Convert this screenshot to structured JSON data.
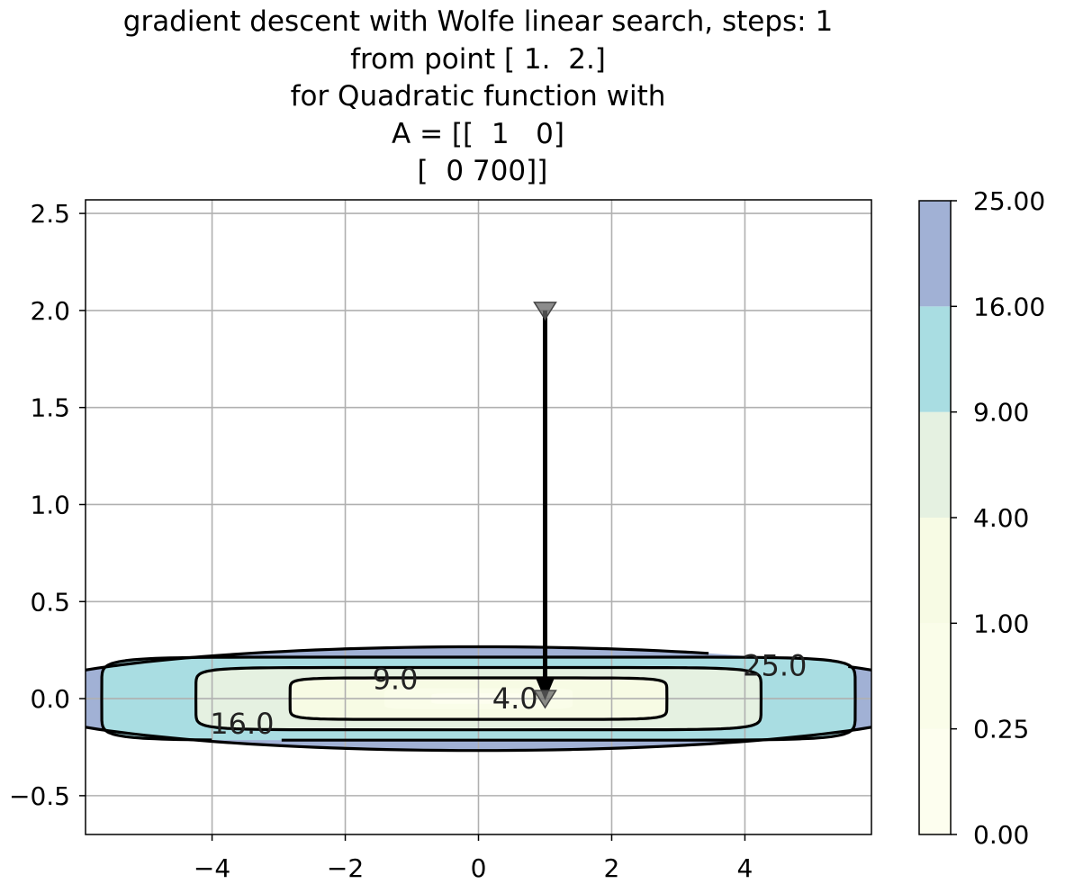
{
  "chart_data": {
    "type": "contour",
    "title_lines": [
      "gradient descent with Wolfe linear search, steps: 1",
      "from point [ 1.  2.]",
      "for Quadratic function with",
      "A = [[  1   0]",
      " [  0 700]]"
    ],
    "xlabel": "",
    "ylabel": "",
    "xlim": [
      -5.9,
      5.9
    ],
    "ylim": [
      -0.7,
      2.57
    ],
    "xticks": [
      -4,
      -2,
      0,
      2,
      4
    ],
    "xtick_labels": [
      "−4",
      "−2",
      "0",
      "2",
      "4"
    ],
    "yticks": [
      -0.5,
      0.0,
      0.5,
      1.0,
      1.5,
      2.0,
      2.5
    ],
    "ytick_labels": [
      "−0.5",
      "0.0",
      "0.5",
      "1.0",
      "1.5",
      "2.0",
      "2.5"
    ],
    "grid": true,
    "function": {
      "A": [
        [
          1,
          0
        ],
        [
          0,
          700
        ]
      ]
    },
    "levels": [
      0.0,
      0.25,
      1.0,
      4.0,
      9.0,
      16.0,
      25.0
    ],
    "colorbar": {
      "ticks": [
        0.0,
        0.25,
        1.0,
        4.0,
        9.0,
        16.0,
        25.0
      ],
      "tick_labels": [
        "0.00",
        "0.25",
        "1.00",
        "4.00",
        "9.00",
        "16.00",
        "25.00"
      ],
      "colors": [
        "#fdfeef",
        "#fafde9",
        "#f7fbe4",
        "#e5f1e1",
        "#a9dde2",
        "#a1b1d5"
      ]
    },
    "contour_lines": [
      {
        "level": 4.0,
        "label": "4.0"
      },
      {
        "level": 9.0,
        "label": "9.0"
      },
      {
        "level": 16.0,
        "label": "16.0"
      },
      {
        "level": 25.0,
        "label": "25.0"
      }
    ],
    "trajectory": {
      "points": [
        [
          1.0,
          2.0
        ],
        [
          1.0,
          0.0
        ]
      ],
      "marker": "down-triangle"
    }
  }
}
